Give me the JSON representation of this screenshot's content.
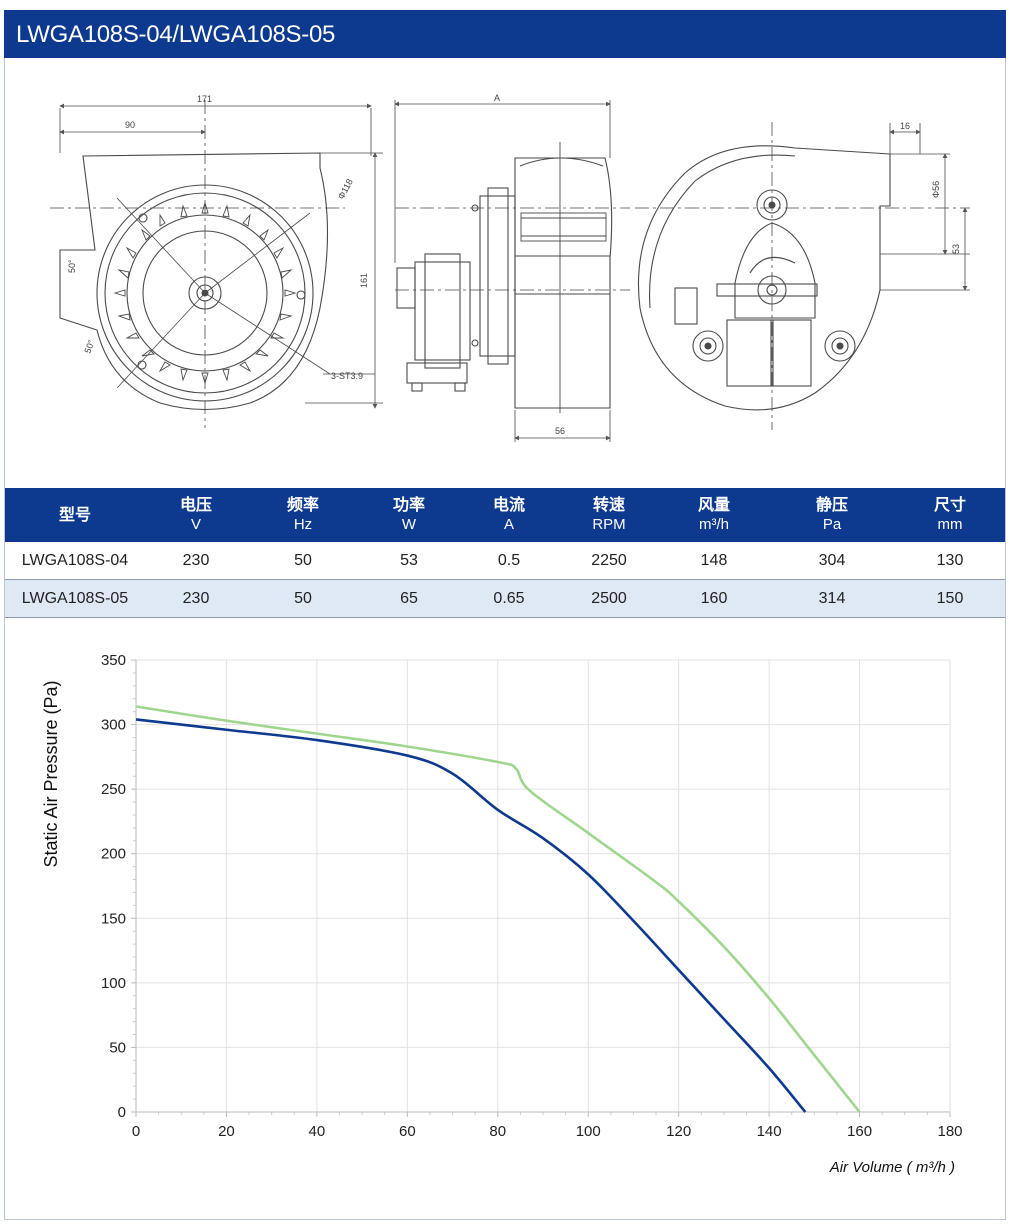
{
  "header": {
    "title": "LWGA108S-04/LWGA108S-05"
  },
  "drawing": {
    "dims": {
      "d171": "171",
      "d90": "90",
      "d118": "Φ118",
      "d161": "161",
      "angle1": "50°",
      "angle2": "50°",
      "screw": "3-ST3.9",
      "a": "A",
      "d56b": "56",
      "d16": "16",
      "d56": "Φ56",
      "d53": "53"
    }
  },
  "table": {
    "headers": [
      {
        "label": "型号",
        "unit": ""
      },
      {
        "label": "电压",
        "unit": "V"
      },
      {
        "label": "频率",
        "unit": "Hz"
      },
      {
        "label": "功率",
        "unit": "W"
      },
      {
        "label": "电流",
        "unit": "A"
      },
      {
        "label": "转速",
        "unit": "RPM"
      },
      {
        "label": "风量",
        "unit": "m³/h"
      },
      {
        "label": "静压",
        "unit": "Pa"
      },
      {
        "label": "尺寸",
        "unit": "mm"
      }
    ],
    "rows": [
      [
        "LWGA108S-04",
        "230",
        "50",
        "53",
        "0.5",
        "2250",
        "148",
        "304",
        "130"
      ],
      [
        "LWGA108S-05",
        "230",
        "50",
        "65",
        "0.65",
        "2500",
        "160",
        "314",
        "150"
      ]
    ]
  },
  "chart_data": {
    "type": "line",
    "xlabel": "Air Volume ( m³/h )",
    "ylabel": "Static Air Pressure  (Pa)",
    "xlim": [
      0,
      180
    ],
    "ylim": [
      0,
      350
    ],
    "xticks": [
      "0",
      "20",
      "40",
      "60",
      "80",
      "100",
      "120",
      "140",
      "160",
      "180"
    ],
    "yticks": [
      "0",
      "50",
      "100",
      "150",
      "200",
      "250",
      "300",
      "350"
    ],
    "grid": true,
    "series": [
      {
        "color": "#0d3a8e",
        "x": [
          0,
          20,
          40,
          60,
          70,
          80,
          90,
          100,
          110,
          120,
          130,
          140,
          148
        ],
        "y": [
          304,
          296,
          288,
          276,
          262,
          234,
          212,
          184,
          148,
          110,
          72,
          34,
          0
        ]
      },
      {
        "color": "#9fd68e",
        "x": [
          0,
          20,
          40,
          60,
          80,
          84,
          87,
          100,
          115,
          120,
          130,
          140,
          150,
          160
        ],
        "y": [
          314,
          303,
          293,
          283,
          271,
          266,
          249,
          216,
          178,
          163,
          128,
          88,
          44,
          0
        ]
      }
    ]
  }
}
